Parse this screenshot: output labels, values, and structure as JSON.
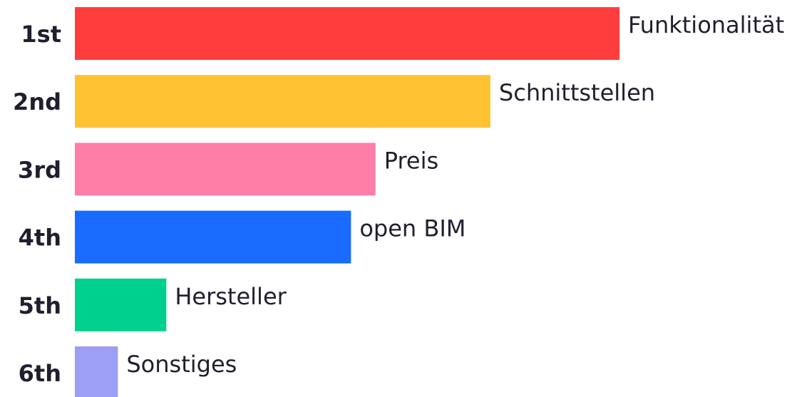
{
  "chart_data": {
    "type": "bar",
    "orientation": "horizontal",
    "ranks": [
      "1st",
      "2nd",
      "3rd",
      "4th",
      "5th",
      "6th"
    ],
    "categories": [
      "Funktionalität",
      "Schnittstellen",
      "Preis",
      "open BIM",
      "Hersteller",
      "Sonstiges"
    ],
    "values": [
      100,
      76.3,
      55.2,
      50.7,
      16.8,
      7.9
    ],
    "colors": [
      "#ff3d3d",
      "#ffc233",
      "#ff7ea8",
      "#1a6bff",
      "#00d08e",
      "#9d9ef5"
    ],
    "grid": false,
    "legend": "none"
  }
}
